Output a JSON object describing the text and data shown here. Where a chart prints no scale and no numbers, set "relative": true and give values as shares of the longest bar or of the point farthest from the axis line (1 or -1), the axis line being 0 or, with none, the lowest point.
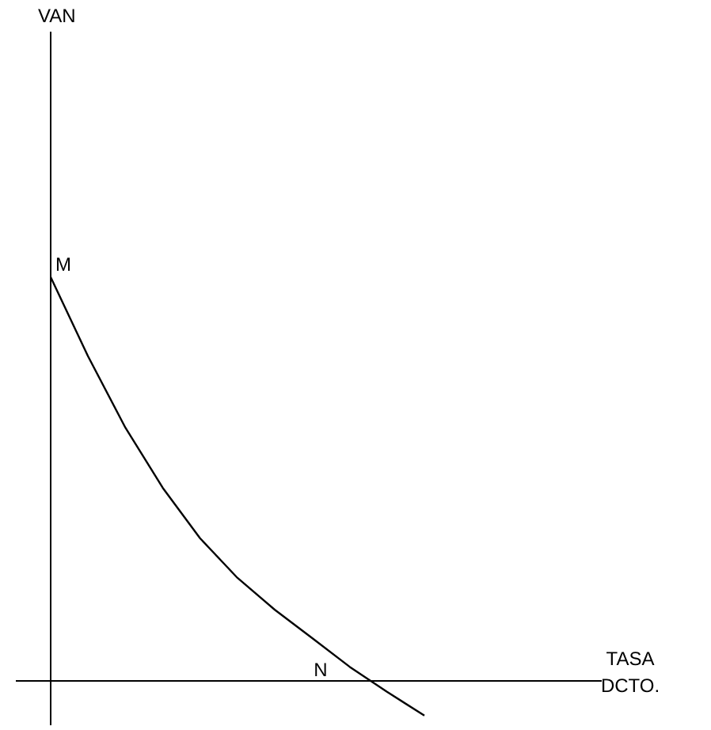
{
  "chart_data": {
    "type": "line",
    "relative": true,
    "categories": [
      null,
      null,
      null,
      null,
      null,
      null,
      null,
      null,
      null,
      null,
      null
    ],
    "series": [
      {
        "color": "#000000",
        "values": [
          1,
          0.804,
          0.627,
          0.478,
          0.353,
          0.255,
          0.176,
          0.106,
          0.035,
          -0.027,
          -0.086
        ]
      }
    ],
    "annotations": [
      "VAN",
      "TASA DCTO.",
      "M",
      "N"
    ],
    "line_style": "solid"
  }
}
